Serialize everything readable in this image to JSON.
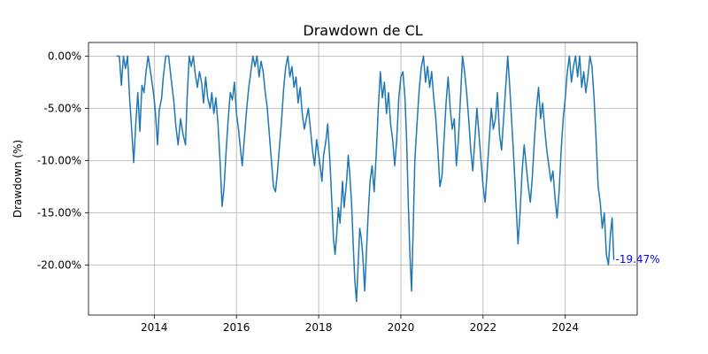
{
  "chart_data": {
    "type": "line",
    "title": "Drawdown de CL",
    "xlabel": "",
    "ylabel": "Drawdown (%)",
    "xlim": [
      2012.4,
      2025.75
    ],
    "ylim": [
      -24.8,
      1.3
    ],
    "grid": true,
    "x_ticks": [
      {
        "value": 2014,
        "label": "2014"
      },
      {
        "value": 2016,
        "label": "2016"
      },
      {
        "value": 2018,
        "label": "2018"
      },
      {
        "value": 2020,
        "label": "2020"
      },
      {
        "value": 2022,
        "label": "2022"
      },
      {
        "value": 2024,
        "label": "2024"
      }
    ],
    "y_ticks": [
      {
        "value": 0,
        "label": "0.00%"
      },
      {
        "value": -5,
        "label": "-5.00%"
      },
      {
        "value": -10,
        "label": "-10.00%"
      },
      {
        "value": -15,
        "label": "-15.00%"
      },
      {
        "value": -20,
        "label": "-20.00%"
      }
    ],
    "series": [
      {
        "color": "#1f77b4",
        "points": [
          [
            2013.09,
            0.0
          ],
          [
            2013.15,
            0.0
          ],
          [
            2013.2,
            -2.8
          ],
          [
            2013.25,
            0.0
          ],
          [
            2013.3,
            -1.2
          ],
          [
            2013.35,
            0.0
          ],
          [
            2013.4,
            -4.0
          ],
          [
            2013.45,
            -7.0
          ],
          [
            2013.5,
            -10.2
          ],
          [
            2013.55,
            -6.5
          ],
          [
            2013.6,
            -3.5
          ],
          [
            2013.65,
            -7.2
          ],
          [
            2013.7,
            -2.8
          ],
          [
            2013.75,
            -3.5
          ],
          [
            2013.8,
            -1.5
          ],
          [
            2013.85,
            0.0
          ],
          [
            2013.92,
            -1.8
          ],
          [
            2013.98,
            -3.5
          ],
          [
            2014.02,
            -5.0
          ],
          [
            2014.08,
            -8.5
          ],
          [
            2014.12,
            -5.2
          ],
          [
            2014.18,
            -4.0
          ],
          [
            2014.22,
            -2.0
          ],
          [
            2014.28,
            0.0
          ],
          [
            2014.35,
            0.0
          ],
          [
            2014.42,
            -2.5
          ],
          [
            2014.48,
            -4.5
          ],
          [
            2014.52,
            -6.5
          ],
          [
            2014.58,
            -8.5
          ],
          [
            2014.64,
            -6.0
          ],
          [
            2014.7,
            -7.5
          ],
          [
            2014.76,
            -8.5
          ],
          [
            2014.8,
            -4.0
          ],
          [
            2014.85,
            0.0
          ],
          [
            2014.9,
            -1.0
          ],
          [
            2014.95,
            0.0
          ],
          [
            2015.0,
            -1.8
          ],
          [
            2015.05,
            -3.0
          ],
          [
            2015.1,
            -1.5
          ],
          [
            2015.15,
            -2.5
          ],
          [
            2015.2,
            -4.5
          ],
          [
            2015.25,
            -2.0
          ],
          [
            2015.3,
            -4.0
          ],
          [
            2015.36,
            -5.0
          ],
          [
            2015.4,
            -3.5
          ],
          [
            2015.45,
            -5.5
          ],
          [
            2015.5,
            -4.0
          ],
          [
            2015.55,
            -6.5
          ],
          [
            2015.6,
            -10.0
          ],
          [
            2015.65,
            -14.4
          ],
          [
            2015.7,
            -12.5
          ],
          [
            2015.75,
            -9.0
          ],
          [
            2015.8,
            -6.0
          ],
          [
            2015.85,
            -3.5
          ],
          [
            2015.9,
            -4.2
          ],
          [
            2015.95,
            -2.5
          ],
          [
            2016.0,
            -5.5
          ],
          [
            2016.05,
            -7.0
          ],
          [
            2016.1,
            -9.0
          ],
          [
            2016.14,
            -10.5
          ],
          [
            2016.2,
            -7.5
          ],
          [
            2016.25,
            -5.0
          ],
          [
            2016.3,
            -3.0
          ],
          [
            2016.35,
            -1.5
          ],
          [
            2016.4,
            0.0
          ],
          [
            2016.45,
            -1.0
          ],
          [
            2016.5,
            0.0
          ],
          [
            2016.55,
            -2.0
          ],
          [
            2016.6,
            -0.5
          ],
          [
            2016.65,
            -1.5
          ],
          [
            2016.7,
            -3.5
          ],
          [
            2016.75,
            -5.0
          ],
          [
            2016.8,
            -7.5
          ],
          [
            2016.85,
            -10.0
          ],
          [
            2016.9,
            -12.5
          ],
          [
            2016.95,
            -13.0
          ],
          [
            2017.0,
            -11.0
          ],
          [
            2017.05,
            -8.5
          ],
          [
            2017.1,
            -6.0
          ],
          [
            2017.15,
            -3.0
          ],
          [
            2017.2,
            -1.0
          ],
          [
            2017.25,
            0.0
          ],
          [
            2017.3,
            -2.0
          ],
          [
            2017.35,
            -1.0
          ],
          [
            2017.4,
            -3.0
          ],
          [
            2017.45,
            -2.0
          ],
          [
            2017.5,
            -4.5
          ],
          [
            2017.55,
            -3.0
          ],
          [
            2017.6,
            -5.5
          ],
          [
            2017.65,
            -7.0
          ],
          [
            2017.7,
            -6.0
          ],
          [
            2017.75,
            -5.0
          ],
          [
            2017.8,
            -7.0
          ],
          [
            2017.85,
            -9.0
          ],
          [
            2017.9,
            -10.5
          ],
          [
            2017.95,
            -8.0
          ],
          [
            2018.02,
            -10.0
          ],
          [
            2018.08,
            -12.0
          ],
          [
            2018.12,
            -9.5
          ],
          [
            2018.18,
            -8.0
          ],
          [
            2018.22,
            -6.5
          ],
          [
            2018.28,
            -10.5
          ],
          [
            2018.32,
            -14.0
          ],
          [
            2018.36,
            -17.5
          ],
          [
            2018.4,
            -19.0
          ],
          [
            2018.44,
            -17.0
          ],
          [
            2018.48,
            -14.5
          ],
          [
            2018.52,
            -16.0
          ],
          [
            2018.58,
            -12.0
          ],
          [
            2018.62,
            -14.5
          ],
          [
            2018.68,
            -12.0
          ],
          [
            2018.72,
            -9.5
          ],
          [
            2018.76,
            -11.5
          ],
          [
            2018.8,
            -14.0
          ],
          [
            2018.84,
            -18.0
          ],
          [
            2018.88,
            -21.5
          ],
          [
            2018.92,
            -23.5
          ],
          [
            2018.96,
            -20.0
          ],
          [
            2019.0,
            -16.5
          ],
          [
            2019.04,
            -17.5
          ],
          [
            2019.08,
            -19.5
          ],
          [
            2019.12,
            -22.5
          ],
          [
            2019.16,
            -19.0
          ],
          [
            2019.2,
            -15.5
          ],
          [
            2019.25,
            -12.0
          ],
          [
            2019.3,
            -10.5
          ],
          [
            2019.35,
            -13.0
          ],
          [
            2019.4,
            -9.5
          ],
          [
            2019.45,
            -5.0
          ],
          [
            2019.5,
            -1.5
          ],
          [
            2019.55,
            -4.0
          ],
          [
            2019.6,
            -2.5
          ],
          [
            2019.65,
            -5.5
          ],
          [
            2019.7,
            -3.5
          ],
          [
            2019.75,
            -6.5
          ],
          [
            2019.8,
            -8.0
          ],
          [
            2019.85,
            -10.5
          ],
          [
            2019.9,
            -8.0
          ],
          [
            2019.95,
            -4.0
          ],
          [
            2020.0,
            -2.0
          ],
          [
            2020.05,
            -1.5
          ],
          [
            2020.1,
            -4.0
          ],
          [
            2020.14,
            -8.0
          ],
          [
            2020.18,
            -14.0
          ],
          [
            2020.22,
            -19.0
          ],
          [
            2020.26,
            -22.5
          ],
          [
            2020.3,
            -16.5
          ],
          [
            2020.34,
            -10.0
          ],
          [
            2020.4,
            -6.0
          ],
          [
            2020.45,
            -3.0
          ],
          [
            2020.5,
            -1.0
          ],
          [
            2020.55,
            0.0
          ],
          [
            2020.6,
            -2.5
          ],
          [
            2020.65,
            -1.0
          ],
          [
            2020.7,
            -3.0
          ],
          [
            2020.75,
            -1.5
          ],
          [
            2020.8,
            -4.0
          ],
          [
            2020.85,
            -6.0
          ],
          [
            2020.9,
            -9.0
          ],
          [
            2020.95,
            -12.5
          ],
          [
            2021.0,
            -11.5
          ],
          [
            2021.05,
            -8.0
          ],
          [
            2021.1,
            -4.5
          ],
          [
            2021.15,
            -2.0
          ],
          [
            2021.2,
            -5.0
          ],
          [
            2021.25,
            -7.0
          ],
          [
            2021.3,
            -6.0
          ],
          [
            2021.35,
            -10.5
          ],
          [
            2021.4,
            -8.0
          ],
          [
            2021.45,
            -4.0
          ],
          [
            2021.5,
            0.0
          ],
          [
            2021.55,
            -1.5
          ],
          [
            2021.6,
            -3.5
          ],
          [
            2021.65,
            -6.0
          ],
          [
            2021.7,
            -9.0
          ],
          [
            2021.75,
            -11.0
          ],
          [
            2021.8,
            -8.0
          ],
          [
            2021.85,
            -5.0
          ],
          [
            2021.9,
            -7.5
          ],
          [
            2021.95,
            -10.0
          ],
          [
            2022.0,
            -12.5
          ],
          [
            2022.05,
            -14.0
          ],
          [
            2022.1,
            -11.0
          ],
          [
            2022.15,
            -8.0
          ],
          [
            2022.2,
            -5.0
          ],
          [
            2022.25,
            -7.0
          ],
          [
            2022.3,
            -6.0
          ],
          [
            2022.35,
            -3.5
          ],
          [
            2022.4,
            -7.5
          ],
          [
            2022.45,
            -9.0
          ],
          [
            2022.5,
            -6.0
          ],
          [
            2022.55,
            -3.0
          ],
          [
            2022.6,
            0.0
          ],
          [
            2022.65,
            -3.0
          ],
          [
            2022.7,
            -6.5
          ],
          [
            2022.75,
            -10.0
          ],
          [
            2022.8,
            -14.0
          ],
          [
            2022.85,
            -18.0
          ],
          [
            2022.9,
            -15.0
          ],
          [
            2022.95,
            -11.0
          ],
          [
            2023.0,
            -8.5
          ],
          [
            2023.05,
            -10.5
          ],
          [
            2023.1,
            -12.5
          ],
          [
            2023.15,
            -14.0
          ],
          [
            2023.2,
            -11.5
          ],
          [
            2023.25,
            -8.0
          ],
          [
            2023.3,
            -5.0
          ],
          [
            2023.35,
            -3.0
          ],
          [
            2023.4,
            -6.0
          ],
          [
            2023.45,
            -4.5
          ],
          [
            2023.5,
            -7.0
          ],
          [
            2023.55,
            -9.0
          ],
          [
            2023.6,
            -10.5
          ],
          [
            2023.65,
            -12.0
          ],
          [
            2023.7,
            -11.0
          ],
          [
            2023.75,
            -13.5
          ],
          [
            2023.8,
            -15.5
          ],
          [
            2023.85,
            -13.0
          ],
          [
            2023.9,
            -9.0
          ],
          [
            2023.95,
            -6.0
          ],
          [
            2024.0,
            -4.0
          ],
          [
            2024.05,
            -1.5
          ],
          [
            2024.1,
            0.0
          ],
          [
            2024.15,
            -2.5
          ],
          [
            2024.2,
            -1.0
          ],
          [
            2024.25,
            0.0
          ],
          [
            2024.3,
            -2.0
          ],
          [
            2024.35,
            0.0
          ],
          [
            2024.4,
            -3.0
          ],
          [
            2024.45,
            -1.5
          ],
          [
            2024.5,
            -3.5
          ],
          [
            2024.55,
            -2.0
          ],
          [
            2024.6,
            0.0
          ],
          [
            2024.65,
            -1.0
          ],
          [
            2024.7,
            -4.0
          ],
          [
            2024.75,
            -8.0
          ],
          [
            2024.8,
            -12.5
          ],
          [
            2024.85,
            -14.0
          ],
          [
            2024.9,
            -16.5
          ],
          [
            2024.95,
            -15.0
          ],
          [
            2025.0,
            -19.0
          ],
          [
            2025.05,
            -20.0
          ],
          [
            2025.1,
            -17.0
          ],
          [
            2025.14,
            -15.5
          ],
          [
            2025.18,
            -19.47
          ]
        ]
      }
    ],
    "annotations": [
      {
        "text": "-19.47%",
        "x": 2025.18,
        "y": -19.47,
        "color": "#0000ff"
      }
    ]
  }
}
